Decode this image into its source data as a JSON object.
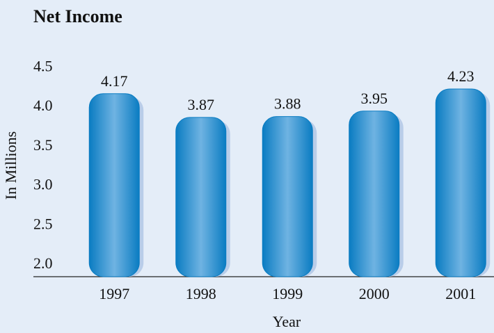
{
  "chart_data": {
    "type": "bar",
    "title": "Net Income",
    "x_label": "Year",
    "y_label": "In Millions",
    "categories": [
      "1997",
      "1998",
      "1999",
      "2000",
      "2001"
    ],
    "values": [
      4.17,
      3.87,
      3.88,
      3.95,
      4.23
    ],
    "color": "#0a7cc2",
    "ylim": [
      1.85,
      4.6
    ],
    "yticks": [
      {
        "value": 2,
        "label": "2.0"
      },
      {
        "value": 2.5,
        "label": "2.5"
      },
      {
        "value": 3,
        "label": "3.0"
      },
      {
        "value": 3.5,
        "label": "3.5"
      },
      {
        "value": 4,
        "label": "4.0"
      },
      {
        "value": 4.5,
        "label": "4.5"
      }
    ],
    "grid": false
  }
}
